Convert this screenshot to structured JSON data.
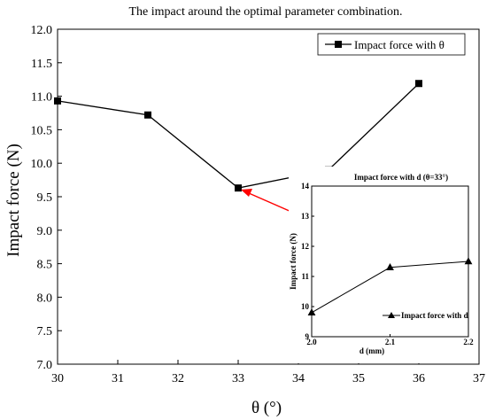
{
  "chart_data": [
    {
      "type": "line",
      "title": "The impact around the optimal parameter combination.",
      "xlabel": "θ (°)",
      "ylabel": "Impact force (N)",
      "xlim": [
        30,
        37
      ],
      "ylim": [
        7.0,
        12.0
      ],
      "x_ticks": [
        "30",
        "31",
        "32",
        "33",
        "34",
        "35",
        "36",
        "37"
      ],
      "y_ticks": [
        "7.0",
        "7.5",
        "8.0",
        "8.5",
        "9.0",
        "9.5",
        "10.0",
        "10.5",
        "11.0",
        "11.5",
        "12.0"
      ],
      "legend_position": "top-right",
      "series": [
        {
          "name": "Impact force with θ",
          "marker": "square",
          "color": "#000000",
          "x": [
            30,
            31.5,
            33,
            34.5,
            36
          ],
          "y": [
            10.93,
            10.72,
            9.63,
            9.9,
            11.19
          ]
        }
      ],
      "annotation": {
        "type": "arrow",
        "color": "#ff0000",
        "points_to": {
          "x": 33,
          "y": 9.63
        }
      }
    },
    {
      "type": "line",
      "title": "Impact force  with d (θ=33°)",
      "xlabel": "d (mm)",
      "ylabel": "Impact force (N)",
      "xlim": [
        2.0,
        2.2
      ],
      "ylim": [
        9,
        14
      ],
      "x_ticks": [
        "2.0",
        "2.1",
        "2.2"
      ],
      "y_ticks": [
        "9",
        "10",
        "11",
        "12",
        "13",
        "14"
      ],
      "legend_position": "bottom-right",
      "series": [
        {
          "name": "Impact force with d",
          "marker": "triangle",
          "color": "#000000",
          "x": [
            2.0,
            2.1,
            2.2
          ],
          "y": [
            9.8,
            11.3,
            11.5
          ]
        }
      ]
    }
  ]
}
